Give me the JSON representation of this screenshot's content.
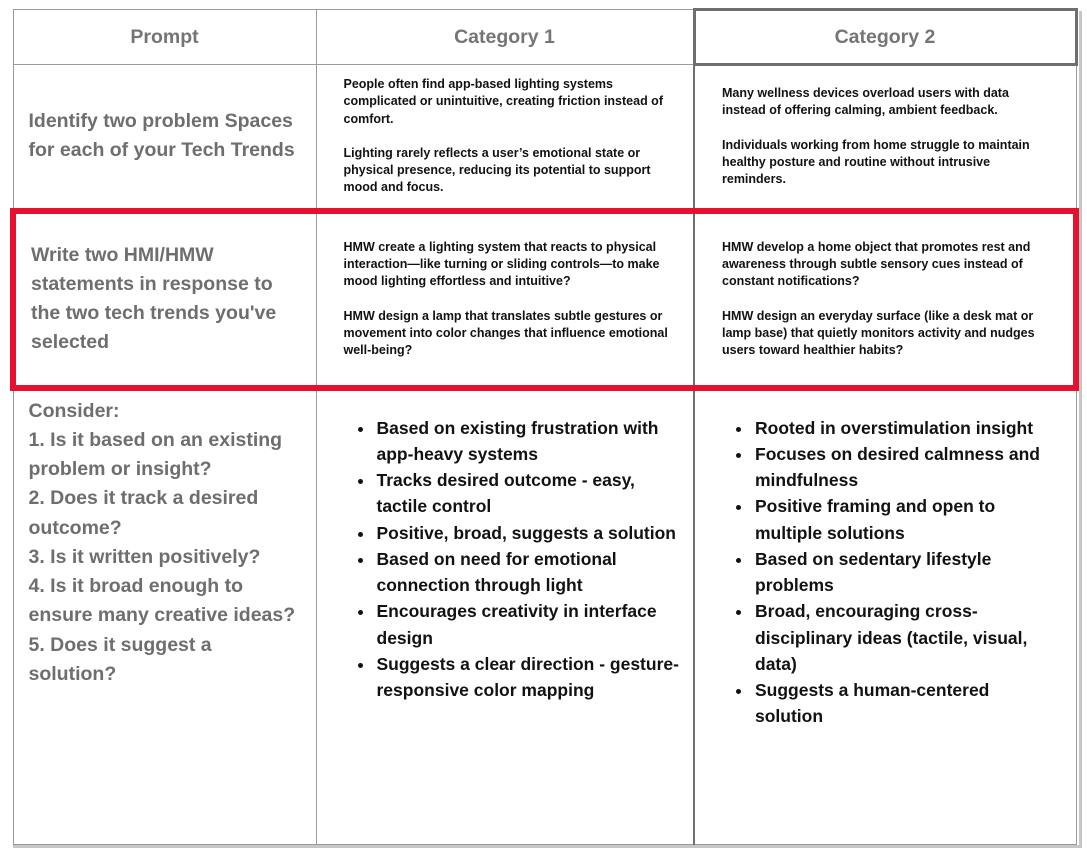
{
  "colors": {
    "highlight_red": "#e8112d",
    "grid_gray": "#9a9a9a",
    "category2_border_gray": "#6e6e6e",
    "header_text_gray": "#757575",
    "prompt_text_gray": "#6e6e6e",
    "body_text": "#121212",
    "background": "#ffffff"
  },
  "table": {
    "headers": {
      "prompt": "Prompt",
      "category1": "Category 1",
      "category2": "Category 2"
    },
    "row_identify": {
      "prompt": "Identify two problem Spaces for each of your Tech Trends",
      "category1_paragraphs": [
        "People often find app-based lighting systems complicated or unintuitive, creating friction instead of comfort.",
        "Lighting rarely reflects a user’s emotional state or physical presence, reducing its potential to support mood and focus."
      ],
      "category2_paragraphs": [
        "Many wellness devices overload users with data instead of offering calming, ambient feedback.",
        "Individuals working from home struggle to maintain healthy posture and routine without intrusive reminders."
      ]
    },
    "row_hmw": {
      "prompt": "Write two HMI/HMW statements in response to the two tech trends you've selected",
      "category1_paragraphs": [
        "HMW create a lighting system that reacts to physical interaction—like turning or sliding controls—to make mood lighting effortless and intuitive?",
        "HMW design a lamp that translates subtle gestures or movement into color changes that influence emotional well-being?"
      ],
      "category2_paragraphs": [
        "HMW develop a home object that promotes rest and awareness through subtle sensory cues instead of constant notifications?",
        "HMW design an everyday surface (like a desk mat or lamp base) that quietly monitors activity and nudges users toward healthier habits?"
      ]
    },
    "row_consider": {
      "prompt_lines": [
        "Consider:",
        "1. Is it based on an existing problem or insight?",
        "2. Does it track a desired outcome?",
        "3. Is it written positively?",
        "4. Is it broad enough to ensure many creative ideas?",
        "5. Does it suggest a solution?"
      ],
      "category1_bullets": [
        "Based on existing frustration with app-heavy systems",
        "Tracks desired outcome - easy, tactile control",
        "Positive, broad, suggests a solution",
        "Based on need for emotional connection through light",
        "Encourages creativity in interface design",
        "Suggests a clear direction - gesture-responsive color mapping"
      ],
      "category2_bullets": [
        "Rooted in overstimulation insight",
        "Focuses on desired calmness and mindfulness",
        "Positive framing and open to multiple solutions",
        "Based on sedentary lifestyle problems",
        "Broad, encouraging cross-disciplinary ideas (tactile, visual, data)",
        "Suggests a human-centered solution"
      ]
    }
  }
}
